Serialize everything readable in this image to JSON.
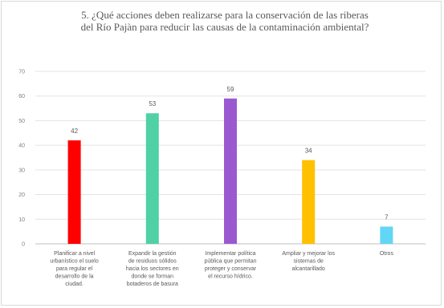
{
  "chart_data": {
    "type": "bar",
    "title": "5. ¿Qué acciones deben realizarse para la conservación de las riberas del Río Pajàn para reducir las causas de la contaminación ambiental?",
    "title_lines": [
      "5. ¿Qué acciones deben realizarse para la conservación de las riberas",
      "del Río Pajàn para reducir las causas de la contaminación ambiental?"
    ],
    "xlabel": "",
    "ylabel": "",
    "ylim": [
      0,
      70
    ],
    "yticks": [
      0,
      10,
      20,
      30,
      40,
      50,
      60,
      70
    ],
    "grid": true,
    "legend": "none",
    "categories": [
      [
        "Planificar a nivel",
        "urbanístico el suelo",
        "para regular el",
        "desarrollo de la",
        "ciudad."
      ],
      [
        "Expandir la gestión",
        "de residuos sólidos",
        "hacia los sectores en",
        "donde se forman",
        "botaderos de basura"
      ],
      [
        "Implementar política",
        "pública que permitan",
        "proteger y conservar",
        "el recurso hídrico."
      ],
      [
        "Ampliar y mejorar los",
        "sistemas de",
        "alcantarillado"
      ],
      [
        "Otros"
      ]
    ],
    "values": [
      42,
      53,
      59,
      34,
      7
    ],
    "colors": [
      "#ff0000",
      "#4fd1a5",
      "#9b59d0",
      "#ffc000",
      "#61d6f5"
    ]
  }
}
